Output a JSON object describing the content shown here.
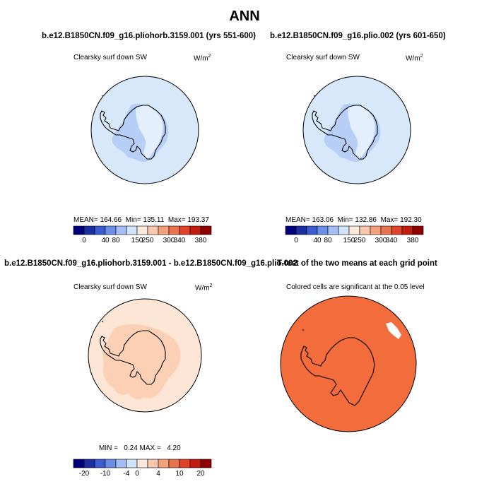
{
  "figure": {
    "title": "ANN"
  },
  "panels": {
    "top_left": {
      "title": "b.e12.B1850CN.f09_g16.pliohorb.3159.001 (yrs 551-600)",
      "variable": "Clearsky surf down SW",
      "units": "W/m",
      "units_exp": "2",
      "stats": {
        "mean_label": "MEAN=",
        "mean": "164.66",
        "min_label": "Min=",
        "min": "135.11",
        "max_label": "Max=",
        "max": "193.37"
      }
    },
    "top_right": {
      "title": "b.e12.B1850CN.f09_g16.plio.002 (yrs 601-650)",
      "variable": "Clearsky surf down SW",
      "units": "W/m",
      "units_exp": "2",
      "stats": {
        "mean_label": "MEAN=",
        "mean": "163.06",
        "min_label": "Min=",
        "min": "132.86",
        "max_label": "Max=",
        "max": "192.30"
      }
    },
    "bottom_left": {
      "title": "b.e12.B1850CN.f09_g16.pliohorb.3159.001 - b.e12.B1850CN.f09_g16.plio.002",
      "variable": "Clearsky surf down SW",
      "units": "W/m",
      "units_exp": "2",
      "stats": {
        "min_label": "MIN =",
        "min": "0.24",
        "max_label": "MAX =",
        "max": "4.20"
      }
    },
    "bottom_right": {
      "title": "T-test of the two means at each grid point",
      "subtitle": "Colored cells are significant at the 0.05 level"
    }
  },
  "chart_data": [
    {
      "type": "heatmap",
      "projection": "south-polar-stereographic",
      "panel": "top_left",
      "field_regions": [
        {
          "region": "Southern Ocean",
          "value_range": [
            150,
            250
          ]
        },
        {
          "region": "East Antarctic interior",
          "value_range": [
            150,
            250
          ]
        },
        {
          "region": "West Antarctica / Ross-Weddell embayments",
          "value_range": [
            135,
            150
          ]
        }
      ],
      "colorbar": {
        "tick_labels": [
          "0",
          "40",
          "80",
          "150",
          "250",
          "300",
          "340",
          "380"
        ],
        "colors": [
          "#00007a",
          "#1b2fa0",
          "#3b5bd1",
          "#6b8ee8",
          "#a4bef5",
          "#d2e4fb",
          "#fbe8dc",
          "#f8c8ac",
          "#f2a07a",
          "#ea734f",
          "#e0432a",
          "#c31b10",
          "#8e0000"
        ]
      }
    },
    {
      "type": "heatmap",
      "projection": "south-polar-stereographic",
      "panel": "top_right",
      "field_regions": [
        {
          "region": "Southern Ocean",
          "value_range": [
            150,
            250
          ]
        },
        {
          "region": "East Antarctic interior",
          "value_range": [
            150,
            250
          ]
        },
        {
          "region": "West Antarctica / Ross-Weddell embayments",
          "value_range": [
            132,
            150
          ]
        }
      ],
      "colorbar": {
        "tick_labels": [
          "0",
          "40",
          "80",
          "150",
          "250",
          "300",
          "340",
          "380"
        ],
        "colors": [
          "#00007a",
          "#1b2fa0",
          "#3b5bd1",
          "#6b8ee8",
          "#a4bef5",
          "#d2e4fb",
          "#fbe8dc",
          "#f8c8ac",
          "#f2a07a",
          "#ea734f",
          "#e0432a",
          "#c31b10",
          "#8e0000"
        ]
      }
    },
    {
      "type": "heatmap",
      "projection": "south-polar-stereographic",
      "panel": "bottom_left",
      "field_regions": [
        {
          "region": "Southern Ocean",
          "value_range": [
            0,
            4
          ]
        },
        {
          "region": "Antarctic continent",
          "value_range": [
            0,
            4
          ]
        }
      ],
      "colorbar": {
        "tick_labels": [
          "-20",
          "-10",
          "-4",
          "0",
          "4",
          "10",
          "20"
        ],
        "colors": [
          "#00007a",
          "#1b2fa0",
          "#3b5bd1",
          "#6b8ee8",
          "#a4bef5",
          "#d2e4fb",
          "#fbe8dc",
          "#f8c8ac",
          "#f2a07a",
          "#ea734f",
          "#e0432a",
          "#c31b10",
          "#8e0000"
        ]
      }
    },
    {
      "type": "heatmap",
      "projection": "south-polar-stereographic",
      "panel": "bottom_right",
      "significance": "nearly all grid cells significant at 0.05; small non-significant patch near 50E",
      "colors": {
        "significant": "#f26c3c",
        "not_significant": "#ffffff"
      }
    }
  ],
  "palette": {
    "ocean_blue": "#d7e8fb",
    "land_blue": "#b7cff7",
    "land_light": "#e4effd",
    "diff_ocean": "#fde6d6",
    "diff_land": "#fbd0b4",
    "sig": "#f26c3c"
  }
}
